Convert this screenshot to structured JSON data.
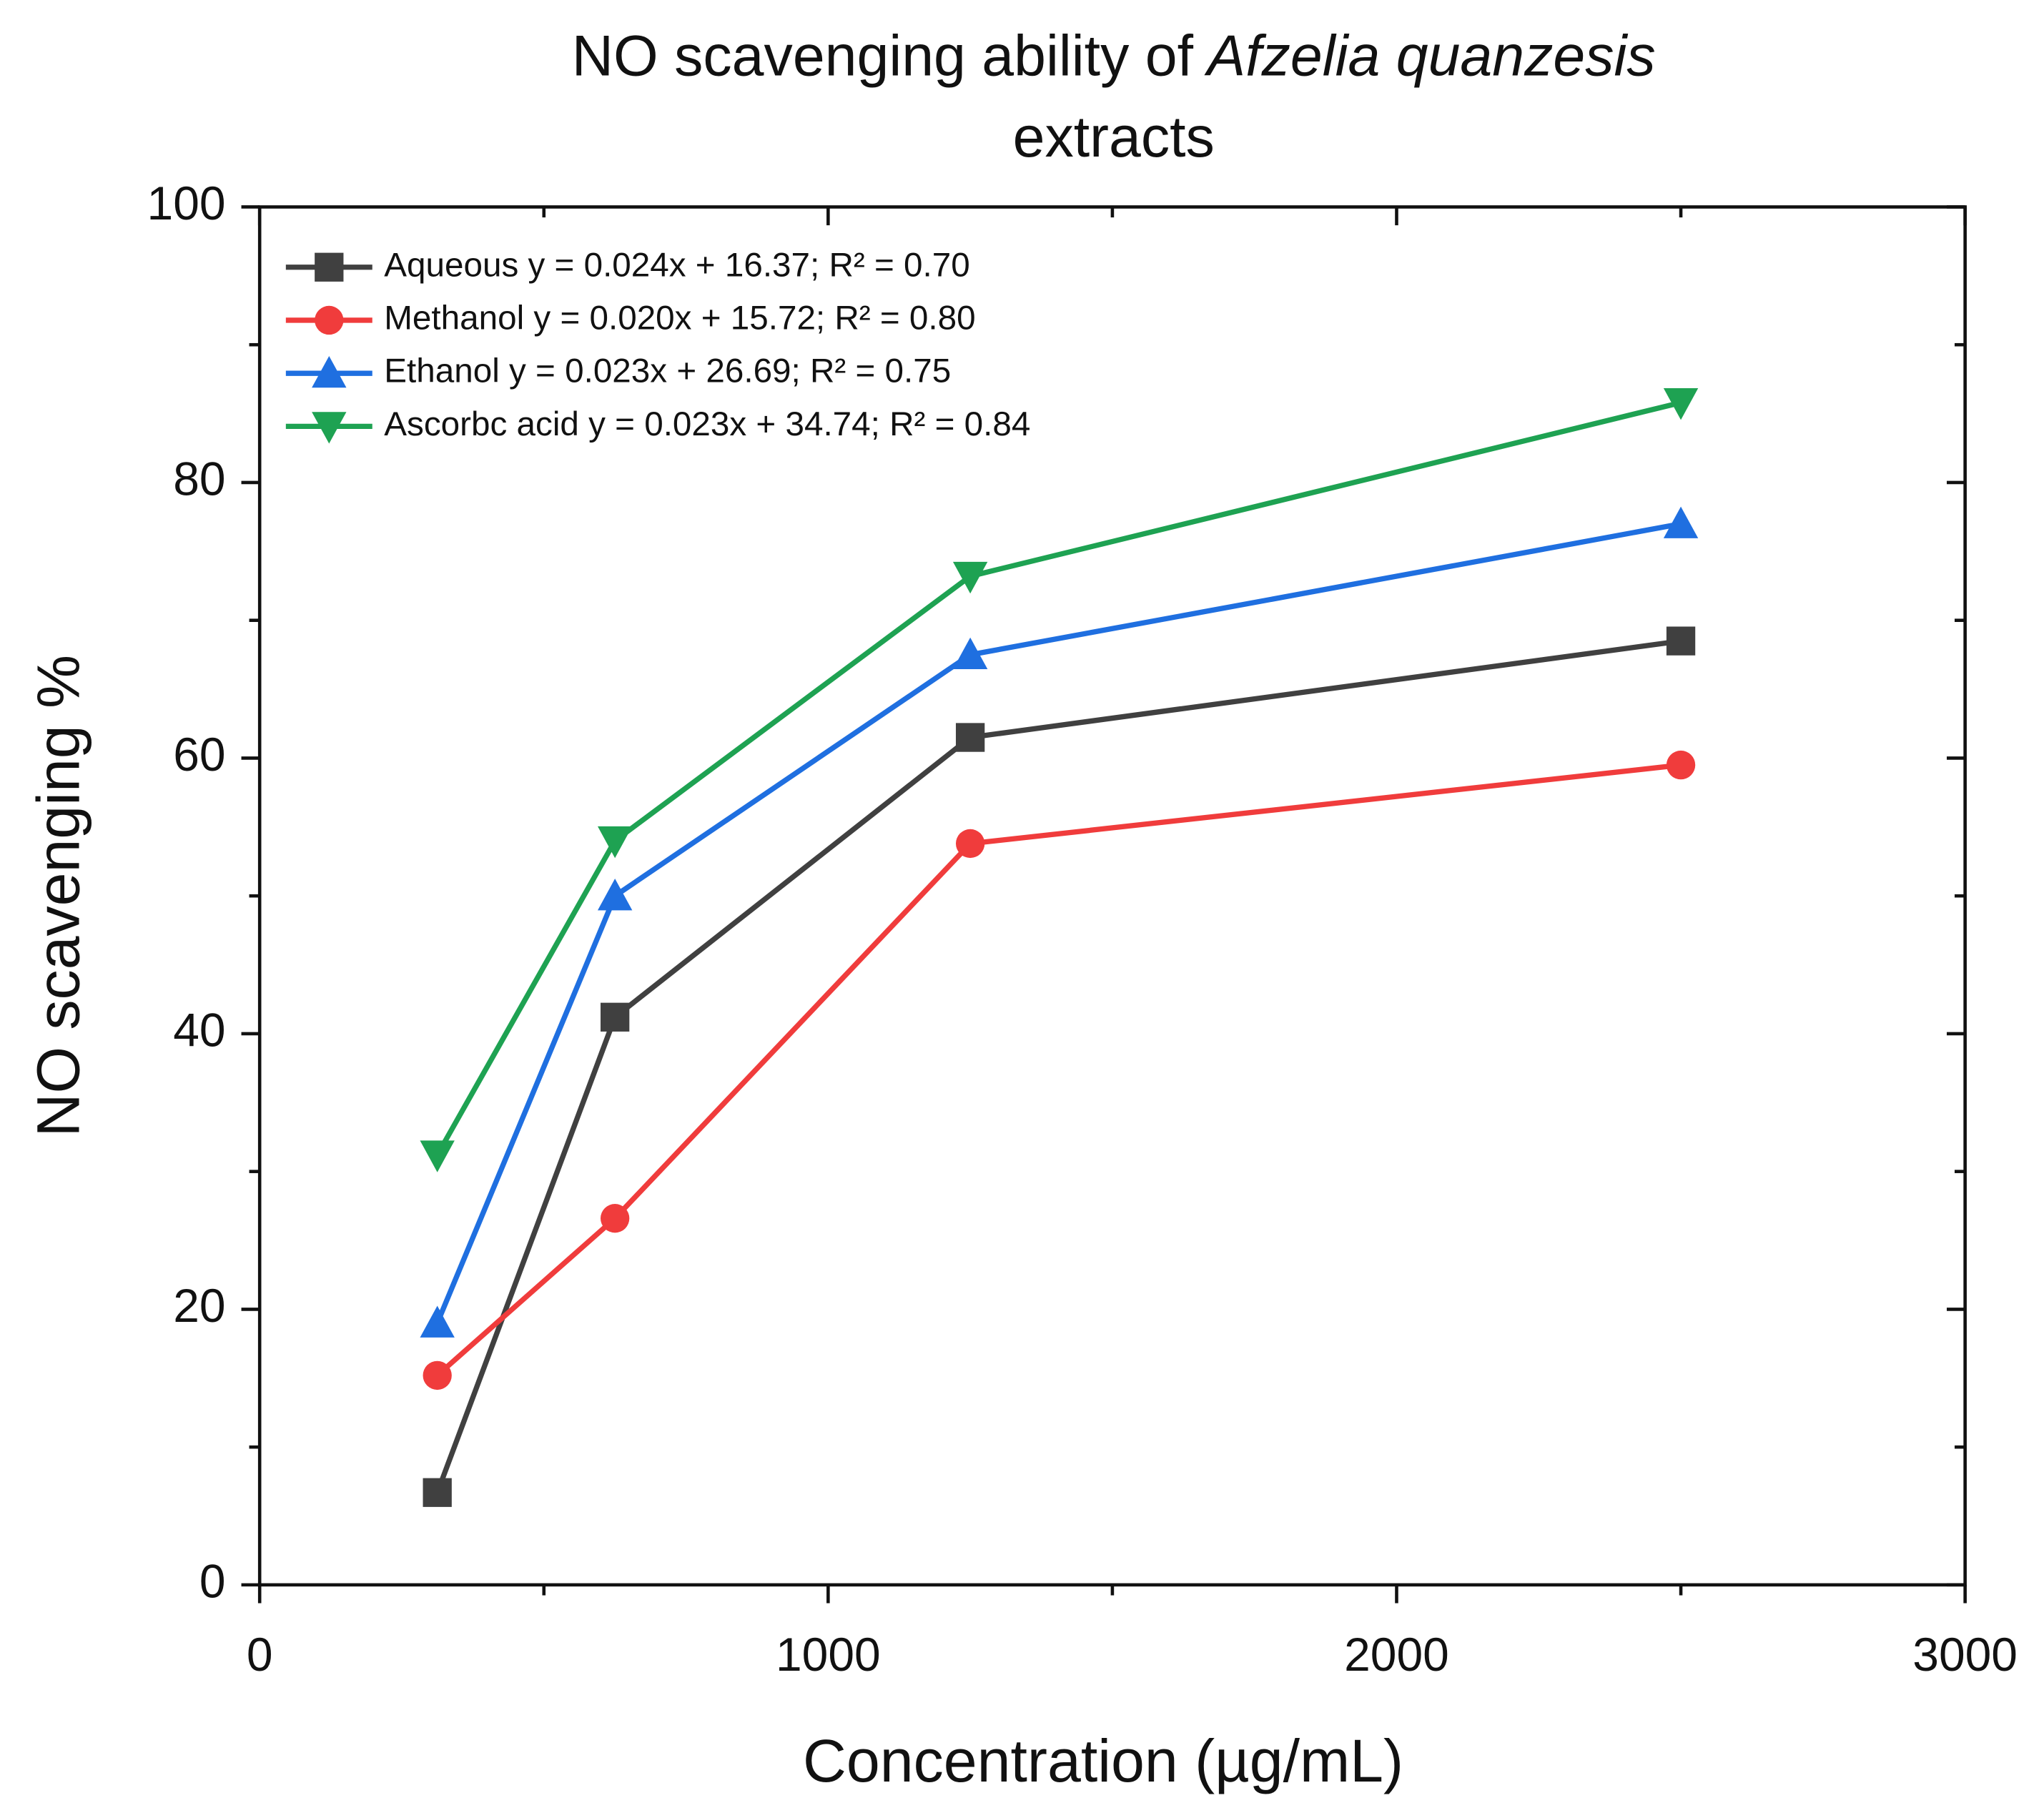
{
  "chart_data": {
    "type": "line",
    "title": [
      "NO scavenging ability of",
      "Afzelia quanzesis",
      "extracts"
    ],
    "title_italic": [
      false,
      true,
      false
    ],
    "xlabel": "Concentration (µg/mL)",
    "ylabel": "NO scavenging %",
    "x": [
      312.5,
      625,
      1250,
      2500
    ],
    "series": [
      {
        "name": "Aqueous y = 0.024x + 16.37; R² = 0.70",
        "color": "#404040",
        "marker": "square",
        "values": [
          6.7,
          41.2,
          61.5,
          68.5
        ]
      },
      {
        "name": "Methanol y = 0.020x + 15.72; R² = 0.80",
        "color": "#f03c3c",
        "marker": "circle",
        "values": [
          15.2,
          26.6,
          53.8,
          59.5
        ]
      },
      {
        "name": "Ethanol y = 0.023x + 26.69; R² = 0.75",
        "color": "#1f6fe0",
        "marker": "triangle-up",
        "values": [
          19.0,
          50.0,
          67.5,
          77.0
        ]
      },
      {
        "name": "Ascorbc acid y = 0.023x + 34.74; R² = 0.84",
        "color": "#1ea252",
        "marker": "triangle-down",
        "values": [
          31.2,
          54.0,
          73.2,
          85.8
        ]
      }
    ],
    "xlim": [
      0,
      3000
    ],
    "xticks": [
      0,
      1000,
      2000,
      3000
    ],
    "xticks_minor": [
      500,
      1500,
      2500
    ],
    "ylim": [
      0,
      100
    ],
    "yticks": [
      0,
      20,
      40,
      60,
      80,
      100
    ],
    "yticks_minor": [
      10,
      30,
      50,
      70,
      90
    ],
    "legend": "upper left"
  }
}
